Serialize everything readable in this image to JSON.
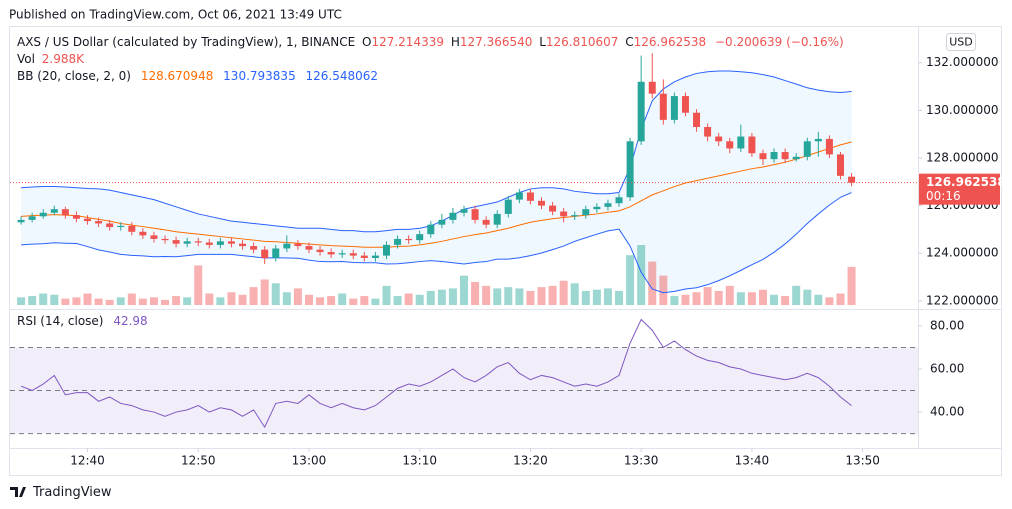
{
  "header": {
    "published": "Published on TradingView.com, Oct 06, 2021 13:49 UTC"
  },
  "chart_data": {
    "type": "candlestick",
    "symbol": "AXS / US Dollar (calculated by TradingView), 1, BINANCE",
    "ohlc_prefixes": [
      "O",
      "H",
      "L",
      "C"
    ],
    "ohlc_labels": [
      "127.214339",
      "127.366540",
      "126.810607",
      "126.962538"
    ],
    "change": "−0.200639 (−0.16%)",
    "currency": "USD",
    "countdown": "00:16",
    "up_color": "#26a69a",
    "down_color": "#ef5350",
    "x": [
      "12:34",
      "12:35",
      "12:36",
      "12:37",
      "12:38",
      "12:39",
      "12:40",
      "12:41",
      "12:42",
      "12:43",
      "12:44",
      "12:45",
      "12:46",
      "12:47",
      "12:48",
      "12:49",
      "12:50",
      "12:51",
      "12:52",
      "12:53",
      "12:54",
      "12:55",
      "12:56",
      "12:57",
      "12:58",
      "12:59",
      "13:00",
      "13:01",
      "13:02",
      "13:03",
      "13:04",
      "13:05",
      "13:06",
      "13:07",
      "13:08",
      "13:09",
      "13:10",
      "13:11",
      "13:12",
      "13:13",
      "13:14",
      "13:15",
      "13:16",
      "13:17",
      "13:18",
      "13:19",
      "13:20",
      "13:21",
      "13:22",
      "13:23",
      "13:24",
      "13:25",
      "13:26",
      "13:27",
      "13:28",
      "13:29",
      "13:30",
      "13:31",
      "13:32",
      "13:33",
      "13:34",
      "13:35",
      "13:36",
      "13:37",
      "13:38",
      "13:39",
      "13:40",
      "13:41",
      "13:42",
      "13:43",
      "13:44",
      "13:45",
      "13:46",
      "13:47",
      "13:48",
      "13:49"
    ],
    "xlim": [
      "12:33",
      "13:55"
    ],
    "xticks": [
      "12:40",
      "12:50",
      "13:00",
      "13:10",
      "13:20",
      "13:30",
      "13:40",
      "13:50"
    ],
    "open": [
      125.3,
      125.4,
      125.55,
      125.7,
      125.85,
      125.6,
      125.45,
      125.35,
      125.25,
      125.1,
      125.15,
      124.9,
      124.75,
      124.6,
      124.55,
      124.4,
      124.5,
      124.45,
      124.35,
      124.5,
      124.4,
      124.3,
      124.15,
      123.8,
      124.2,
      124.4,
      124.3,
      124.15,
      124.05,
      123.95,
      124.0,
      123.9,
      123.8,
      123.9,
      124.35,
      124.6,
      124.55,
      124.8,
      125.2,
      125.4,
      125.7,
      125.85,
      125.4,
      125.2,
      125.65,
      126.25,
      126.55,
      126.2,
      126.0,
      125.75,
      125.55,
      125.6,
      125.85,
      125.95,
      126.1,
      126.35,
      128.7,
      131.2,
      130.7,
      129.6,
      130.6,
      129.9,
      129.3,
      128.9,
      128.7,
      128.4,
      128.9,
      128.2,
      127.95,
      128.25,
      127.95,
      128.05,
      128.7,
      128.8,
      128.15,
      127.214339
    ],
    "high": [
      125.55,
      125.7,
      125.85,
      126.0,
      125.95,
      125.75,
      125.6,
      125.5,
      125.4,
      125.3,
      125.3,
      125.05,
      124.9,
      124.75,
      124.7,
      124.65,
      124.65,
      124.6,
      124.65,
      124.65,
      124.55,
      124.45,
      124.3,
      124.35,
      124.75,
      124.55,
      124.45,
      124.3,
      124.2,
      124.15,
      124.15,
      124.05,
      124.05,
      124.5,
      124.75,
      124.75,
      124.95,
      125.35,
      125.65,
      125.9,
      126.0,
      126.0,
      125.55,
      125.8,
      126.4,
      126.7,
      126.7,
      126.35,
      126.15,
      125.9,
      125.75,
      126.0,
      126.1,
      126.25,
      126.5,
      128.85,
      132.3,
      132.4,
      131.3,
      130.75,
      130.75,
      130.05,
      129.45,
      129.05,
      128.85,
      129.4,
      129.05,
      128.35,
      128.4,
      128.4,
      128.2,
      128.85,
      129.1,
      128.95,
      128.25,
      127.36654
    ],
    "low": [
      125.2,
      125.3,
      125.45,
      125.6,
      125.45,
      125.3,
      125.2,
      125.1,
      124.95,
      124.95,
      124.75,
      124.6,
      124.45,
      124.4,
      124.25,
      124.25,
      124.3,
      124.2,
      124.2,
      124.25,
      124.15,
      124.0,
      123.55,
      123.65,
      124.05,
      124.15,
      124.0,
      123.9,
      123.8,
      123.8,
      123.75,
      123.65,
      123.65,
      123.75,
      124.2,
      124.4,
      124.4,
      124.65,
      125.05,
      125.25,
      125.55,
      125.25,
      125.05,
      125.05,
      125.5,
      126.1,
      126.05,
      125.85,
      125.6,
      125.3,
      125.4,
      125.45,
      125.7,
      125.8,
      125.95,
      126.2,
      128.55,
      130.5,
      129.4,
      129.45,
      129.75,
      129.1,
      128.7,
      128.5,
      128.2,
      128.25,
      128.05,
      127.7,
      127.8,
      127.8,
      127.85,
      127.9,
      128.05,
      128.0,
      127.1,
      126.810607
    ],
    "close": [
      125.4,
      125.55,
      125.7,
      125.85,
      125.6,
      125.45,
      125.35,
      125.25,
      125.1,
      125.15,
      124.9,
      124.75,
      124.6,
      124.55,
      124.4,
      124.5,
      124.45,
      124.35,
      124.5,
      124.4,
      124.3,
      124.15,
      123.8,
      124.2,
      124.4,
      124.3,
      124.15,
      124.05,
      123.95,
      124.0,
      123.9,
      123.8,
      123.9,
      124.35,
      124.6,
      124.55,
      124.8,
      125.2,
      125.4,
      125.7,
      125.85,
      125.4,
      125.2,
      125.65,
      126.25,
      126.55,
      126.2,
      126.0,
      125.75,
      125.55,
      125.6,
      125.85,
      125.95,
      126.1,
      126.35,
      128.7,
      131.2,
      130.7,
      129.6,
      130.6,
      129.9,
      129.3,
      128.9,
      128.7,
      128.4,
      128.9,
      128.2,
      127.95,
      128.25,
      127.95,
      128.05,
      128.7,
      128.8,
      128.15,
      127.25,
      126.962538
    ],
    "ylim": [
      121.7,
      133.5
    ],
    "yticks": [
      {
        "value": 122,
        "label": "122.000000"
      },
      {
        "value": 124,
        "label": "124.000000"
      },
      {
        "value": 126,
        "label": "126.000000"
      },
      {
        "value": 128,
        "label": "128.000000"
      },
      {
        "value": 130,
        "label": "130.000000"
      },
      {
        "value": 132,
        "label": "132.000000"
      }
    ],
    "volume": {
      "name": "Vol",
      "value_label": "2.988K",
      "values": [
        600,
        700,
        900,
        800,
        500,
        600,
        900,
        500,
        400,
        600,
        900,
        500,
        600,
        400,
        700,
        600,
        3100,
        900,
        600,
        1000,
        800,
        1400,
        2000,
        1700,
        1000,
        1300,
        800,
        600,
        700,
        900,
        500,
        700,
        500,
        1500,
        700,
        900,
        800,
        1100,
        1200,
        1300,
        2300,
        1800,
        1500,
        1300,
        1400,
        1300,
        1100,
        1400,
        1500,
        1900,
        1700,
        1100,
        1200,
        1300,
        1100,
        3900,
        4700,
        3400,
        2300,
        700,
        800,
        1000,
        1400,
        1100,
        1500,
        1000,
        1000,
        1200,
        800,
        700,
        1500,
        1200,
        800,
        600,
        900,
        2988
      ]
    },
    "bollinger": {
      "name": "BB (20, close, 2, 0)",
      "basis": {
        "color": "#ff6d00",
        "values": [
          125.55,
          125.58,
          125.6,
          125.62,
          125.6,
          125.58,
          125.5,
          125.42,
          125.35,
          125.25,
          125.18,
          125.12,
          125.05,
          124.98,
          124.9,
          124.85,
          124.8,
          124.75,
          124.7,
          124.65,
          124.6,
          124.55,
          124.5,
          124.48,
          124.45,
          124.42,
          124.38,
          124.35,
          124.32,
          124.3,
          124.28,
          124.25,
          124.25,
          124.25,
          124.28,
          124.3,
          124.35,
          124.42,
          124.5,
          124.6,
          124.7,
          124.78,
          124.85,
          124.95,
          125.05,
          125.18,
          125.3,
          125.38,
          125.45,
          125.5,
          125.55,
          125.6,
          125.65,
          125.72,
          125.78,
          125.95,
          126.2,
          126.45,
          126.62,
          126.8,
          126.95,
          127.05,
          127.15,
          127.25,
          127.35,
          127.45,
          127.55,
          127.62,
          127.72,
          127.82,
          127.95,
          128.1,
          128.25,
          128.4,
          128.55,
          128.670948
        ]
      },
      "upper": {
        "color": "#2962ff",
        "values": [
          126.75,
          126.78,
          126.8,
          126.8,
          126.78,
          126.75,
          126.72,
          126.7,
          126.65,
          126.55,
          126.45,
          126.35,
          126.25,
          126.1,
          125.95,
          125.8,
          125.65,
          125.55,
          125.45,
          125.35,
          125.3,
          125.25,
          125.2,
          125.15,
          125.1,
          125.05,
          125.05,
          125.05,
          125.0,
          124.95,
          124.95,
          124.9,
          124.9,
          124.95,
          125.0,
          125.0,
          125.05,
          125.15,
          125.35,
          125.6,
          125.85,
          125.95,
          126.05,
          126.15,
          126.35,
          126.55,
          126.7,
          126.75,
          126.75,
          126.7,
          126.6,
          126.55,
          126.5,
          126.5,
          126.55,
          127.6,
          129.2,
          130.4,
          130.9,
          131.2,
          131.4,
          131.55,
          131.62,
          131.65,
          131.65,
          131.62,
          131.58,
          131.5,
          131.4,
          131.25,
          131.1,
          130.95,
          130.85,
          130.78,
          130.75,
          130.793835
        ]
      },
      "lower": {
        "color": "#2962ff",
        "values": [
          124.35,
          124.38,
          124.4,
          124.44,
          124.42,
          124.41,
          124.28,
          124.14,
          124.05,
          123.95,
          123.91,
          123.89,
          123.85,
          123.86,
          123.85,
          123.9,
          123.95,
          123.95,
          123.95,
          123.95,
          123.9,
          123.85,
          123.8,
          123.81,
          123.8,
          123.79,
          123.71,
          123.65,
          123.64,
          123.65,
          123.61,
          123.6,
          123.6,
          123.55,
          123.56,
          123.6,
          123.65,
          123.69,
          123.65,
          123.6,
          123.55,
          123.61,
          123.65,
          123.75,
          123.75,
          123.81,
          123.9,
          124.01,
          124.15,
          124.3,
          124.5,
          124.65,
          124.8,
          124.94,
          125.01,
          124.3,
          123.2,
          122.5,
          122.34,
          122.4,
          122.5,
          122.55,
          122.68,
          122.85,
          123.05,
          123.28,
          123.52,
          123.74,
          124.04,
          124.39,
          124.8,
          125.25,
          125.65,
          126.02,
          126.35,
          126.548062
        ]
      }
    },
    "rsi": {
      "name": "RSI (14, close)",
      "color": "#7e57c2",
      "values": [
        52,
        50,
        53,
        57,
        48,
        49,
        49,
        45,
        47,
        44,
        43,
        41,
        40,
        38,
        40,
        41,
        43,
        40,
        42,
        41,
        38,
        41,
        33,
        44,
        45,
        44,
        48,
        44,
        42,
        44,
        42,
        41,
        43,
        47,
        51,
        53,
        52,
        54,
        57,
        60,
        56,
        54,
        57,
        61,
        63,
        58,
        55,
        57,
        56,
        54,
        52,
        53,
        52,
        54,
        57,
        72,
        83,
        78,
        70,
        73,
        69,
        66,
        64,
        63,
        61,
        60,
        58,
        57,
        56,
        55,
        56,
        58,
        56,
        52,
        47,
        42.98
      ],
      "ylim": [
        23.3,
        87.4
      ],
      "yticks": [
        {
          "value": 40,
          "label": "40.00"
        },
        {
          "value": 60,
          "label": "60.00"
        },
        {
          "value": 80,
          "label": "80.00"
        }
      ],
      "band": [
        30,
        70
      ],
      "midline": 50
    }
  },
  "footer": {
    "brand": "TradingView"
  }
}
